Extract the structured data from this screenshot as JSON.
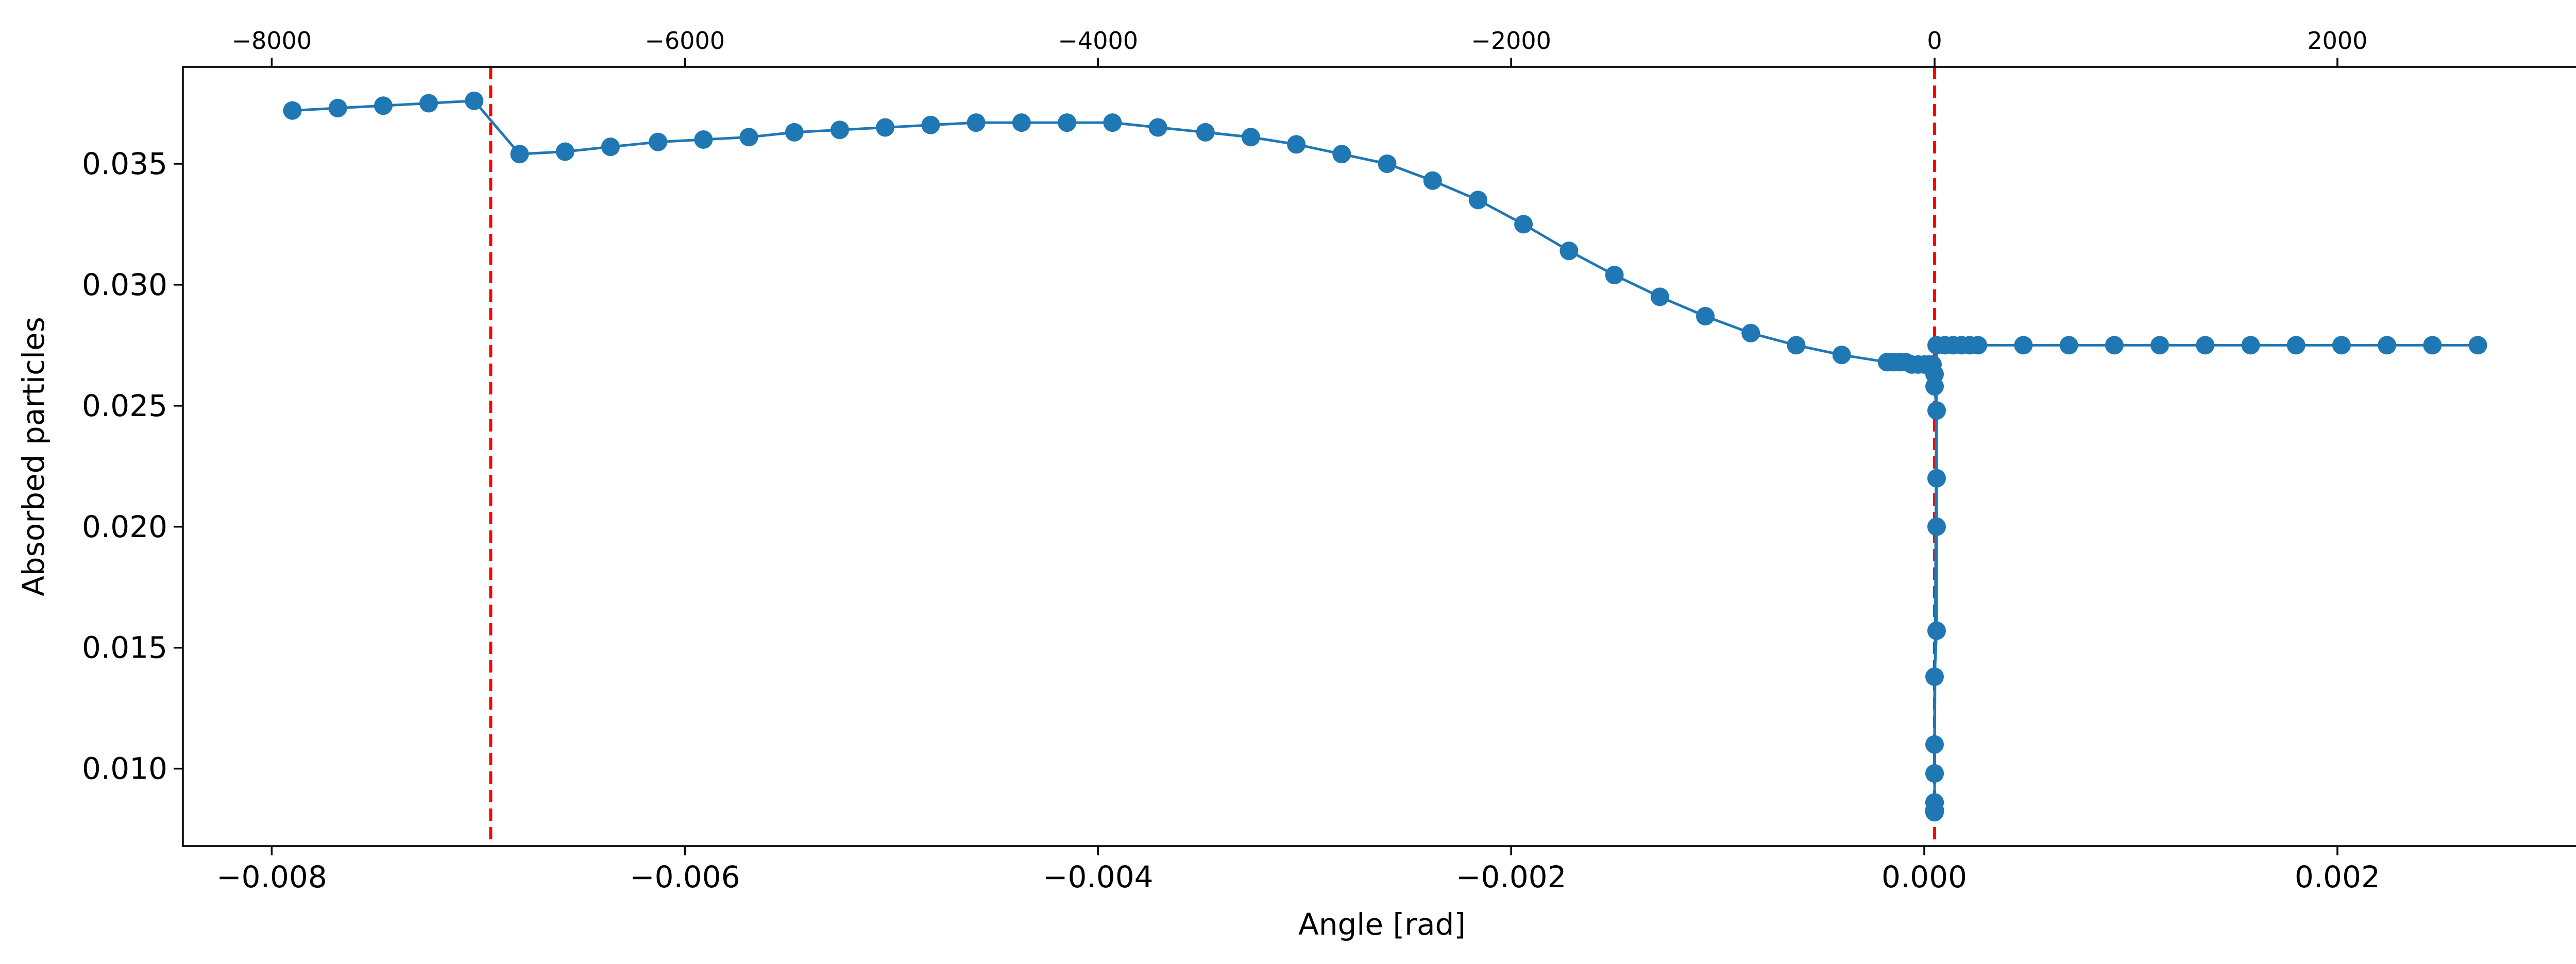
{
  "chart_data": {
    "type": "line",
    "title": "",
    "xlabel": "Angle [rad]",
    "ylabel": "Absorbed particles",
    "xlim": [
      -0.00843,
      0.00318
    ],
    "ylim": [
      0.0068,
      0.039
    ],
    "x_ticks": [
      "−0.008",
      "−0.006",
      "−0.004",
      "−0.002",
      "0.000",
      "0.002"
    ],
    "x_tick_values": [
      -0.008,
      -0.006,
      -0.004,
      -0.002,
      0.0,
      0.002
    ],
    "y_ticks": [
      "0.010",
      "0.015",
      "0.020",
      "0.025",
      "0.030",
      "0.035"
    ],
    "y_tick_values": [
      0.01,
      0.015,
      0.02,
      0.025,
      0.03,
      0.035
    ],
    "top_axis": {
      "ticks": [
        "−8000",
        "−6000",
        "−4000",
        "−2000",
        "0",
        "2000"
      ],
      "tick_positions": [
        -0.008,
        -0.006,
        -0.004,
        -0.002,
        5e-05,
        0.002
      ]
    },
    "grid": false,
    "series": [
      {
        "color": "#1f77b4",
        "marker": "circle",
        "x": [
          -0.0079,
          -0.00768,
          -0.00746,
          -0.00724,
          -0.00702,
          -0.0068,
          -0.00658,
          -0.00636,
          -0.00613,
          -0.00591,
          -0.00569,
          -0.00547,
          -0.00525,
          -0.00503,
          -0.00481,
          -0.00459,
          -0.00437,
          -0.00415,
          -0.00393,
          -0.00371,
          -0.00348,
          -0.00326,
          -0.00304,
          -0.00282,
          -0.0026,
          -0.00238,
          -0.00216,
          -0.00194,
          -0.00172,
          -0.0015,
          -0.00128,
          -0.00106,
          -0.00084,
          -0.00062,
          -0.0004,
          -0.00018,
          -0.00015,
          -0.00012,
          -9e-05,
          -6e-05,
          -3e-05,
          0.0,
          2e-05,
          4e-05,
          5e-05,
          5e-05,
          6e-05,
          6e-05,
          6e-05,
          6e-05,
          5e-05,
          5e-05,
          5e-05,
          5e-05,
          5e-05,
          5e-05,
          5e-05,
          5e-05,
          5e-05,
          6e-05,
          0.0001,
          0.00014,
          0.00018,
          0.00022,
          0.00026,
          0.00048,
          0.0007,
          0.00092,
          0.00114,
          0.00136,
          0.00158,
          0.0018,
          0.00202,
          0.00224,
          0.00246,
          0.00268
        ],
        "y": [
          0.0372,
          0.0373,
          0.0374,
          0.0375,
          0.0376,
          0.0354,
          0.0355,
          0.0357,
          0.0359,
          0.036,
          0.0361,
          0.0363,
          0.0364,
          0.0365,
          0.0366,
          0.0367,
          0.0367,
          0.0367,
          0.0367,
          0.0365,
          0.0363,
          0.0361,
          0.0358,
          0.0354,
          0.035,
          0.0343,
          0.0335,
          0.0325,
          0.0314,
          0.0304,
          0.0295,
          0.0287,
          0.028,
          0.0275,
          0.0271,
          0.0268,
          0.0268,
          0.0268,
          0.0268,
          0.0267,
          0.0267,
          0.0267,
          0.0267,
          0.0267,
          0.0263,
          0.0258,
          0.0248,
          0.022,
          0.02,
          0.0157,
          0.0138,
          0.011,
          0.0098,
          0.0086,
          0.0083,
          0.0082,
          0.0083,
          0.0086,
          0.0098,
          0.0275,
          0.0275,
          0.0275,
          0.0275,
          0.0275,
          0.0275,
          0.0275,
          0.0275,
          0.0275,
          0.0275,
          0.0275,
          0.0275,
          0.0275,
          0.0275,
          0.0275,
          0.0275,
          0.0275
        ]
      }
    ],
    "reference_lines": [
      {
        "orientation": "vertical",
        "x": -0.00694,
        "color": "#ff0000",
        "style": "dashed"
      },
      {
        "orientation": "vertical",
        "x": 5e-05,
        "color": "#ff0000",
        "style": "dashed"
      }
    ],
    "colors": {
      "series": "#1f77b4",
      "reference": "#ff0000",
      "axes": "#000000",
      "background": "#ffffff"
    }
  }
}
